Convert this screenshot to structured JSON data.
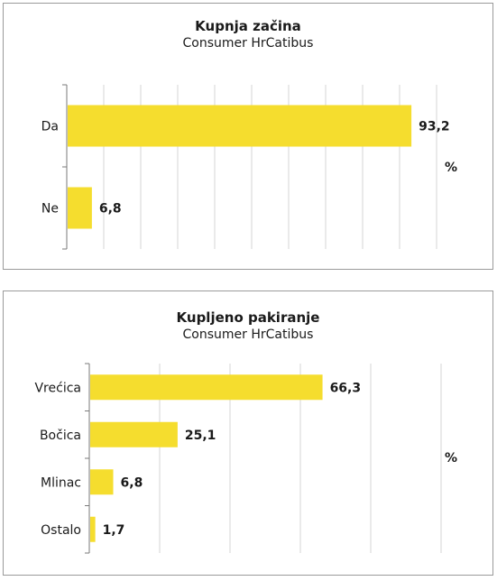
{
  "chart_data": [
    {
      "type": "bar",
      "orientation": "horizontal",
      "title": "Kupnja začina",
      "subtitle": "Consumer HrCatibus",
      "categories": [
        "Da",
        "Ne"
      ],
      "values": [
        93.2,
        6.8
      ],
      "value_labels": [
        "93,2",
        "6,8"
      ],
      "unit": "%",
      "xlim": [
        0,
        100
      ],
      "grid": true,
      "bar_color": "#f5dd2e"
    },
    {
      "type": "bar",
      "orientation": "horizontal",
      "title": "Kupljeno pakiranje",
      "subtitle": "Consumer HrCatibus",
      "categories": [
        "Vrećica",
        "Bočica",
        "Mlinac",
        "Ostalo"
      ],
      "values": [
        66.3,
        25.1,
        6.8,
        1.7
      ],
      "value_labels": [
        "66,3",
        "25,1",
        "6,8",
        "1,7"
      ],
      "unit": "%",
      "xlim": [
        0,
        100
      ],
      "grid": true,
      "bar_color": "#f5dd2e"
    }
  ]
}
